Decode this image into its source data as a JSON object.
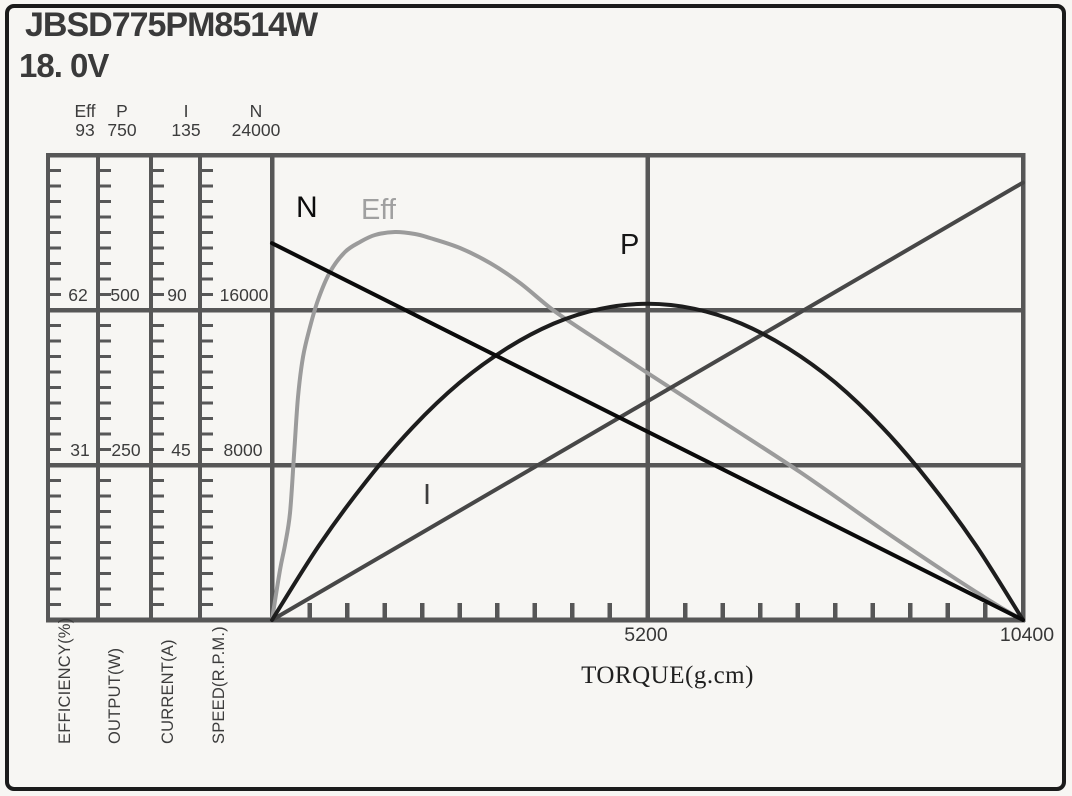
{
  "header": {
    "model": "JBSD775PM8514W",
    "voltage": "18. 0V"
  },
  "chart_data": {
    "type": "line",
    "title": "JBSD775PM8514W",
    "subtitle": "18.0V",
    "x_axis": {
      "label": "TORQUE(g.cm)",
      "min": 0,
      "max": 10400,
      "tick_labels": [
        "5200",
        "10400"
      ],
      "tick_values": [
        5200,
        10400
      ],
      "minor_tick_intervals": 20
    },
    "y_axes": [
      {
        "id": "eff",
        "header": "Eff",
        "top_value": "93",
        "max": 93,
        "grid_values": [
          "62",
          "31"
        ],
        "label": "EFFICIENCY(%)"
      },
      {
        "id": "p",
        "header": "P",
        "top_value": "750",
        "max": 750,
        "grid_values": [
          "500",
          "250"
        ],
        "label": "OUTPUT(W)"
      },
      {
        "id": "i",
        "header": "I",
        "top_value": "135",
        "max": 135,
        "grid_values": [
          "90",
          "45"
        ],
        "label": "CURRENT(A)"
      },
      {
        "id": "n",
        "header": "N",
        "top_value": "24000",
        "max": 24000,
        "grid_values": [
          "16000",
          "8000"
        ],
        "label": "SPEED(R.P.M.)"
      }
    ],
    "series": [
      {
        "name": "Eff",
        "axis": "eff",
        "color": "#9b9b9b",
        "smooth": true,
        "points": [
          [
            0,
            0
          ],
          [
            111,
            10
          ],
          [
            180,
            15
          ],
          [
            249,
            21.4
          ],
          [
            305,
            33
          ],
          [
            360,
            44.6
          ],
          [
            429,
            52.6
          ],
          [
            526,
            58.6
          ],
          [
            637,
            64
          ],
          [
            803,
            69.6
          ],
          [
            1011,
            73.6
          ],
          [
            1219,
            75.6
          ],
          [
            1426,
            77
          ],
          [
            1703,
            77.6
          ],
          [
            1980,
            77.2
          ],
          [
            2188,
            76.4
          ],
          [
            2603,
            74.4
          ],
          [
            3019,
            71.4
          ],
          [
            3434,
            67.4
          ],
          [
            3891,
            62
          ],
          [
            4403,
            57
          ],
          [
            5179,
            49.6
          ],
          [
            6204,
            40
          ],
          [
            7312,
            29.6
          ],
          [
            8420,
            18.4
          ],
          [
            9388,
            9
          ],
          [
            10082,
            2.6
          ],
          [
            10400,
            0
          ]
        ]
      },
      {
        "name": "I",
        "axis": "i",
        "color": "#474747",
        "smooth": false,
        "points": [
          [
            0,
            0
          ],
          [
            10400,
            127
          ]
        ]
      },
      {
        "name": "P",
        "axis": "p",
        "color": "#1d1d1d",
        "smooth": true,
        "points": [
          [
            0,
            0
          ],
          [
            650,
            120
          ],
          [
            1300,
            223
          ],
          [
            1950,
            311
          ],
          [
            2600,
            383
          ],
          [
            3250,
            438
          ],
          [
            3900,
            478
          ],
          [
            4550,
            502
          ],
          [
            5200,
            510
          ],
          [
            5850,
            502
          ],
          [
            6500,
            478
          ],
          [
            7150,
            438
          ],
          [
            7800,
            383
          ],
          [
            8450,
            311
          ],
          [
            9100,
            223
          ],
          [
            9750,
            120
          ],
          [
            10400,
            0
          ]
        ]
      },
      {
        "name": "N",
        "axis": "n",
        "color": "#0b0b0b",
        "smooth": false,
        "points": [
          [
            0,
            19450
          ],
          [
            10400,
            0
          ]
        ]
      }
    ],
    "grid": {
      "on": true,
      "color": "#575757"
    },
    "colors": {
      "background": "#f7f6f3",
      "frame_border": "#1b1b1b",
      "text": "#3c3c3c"
    }
  }
}
